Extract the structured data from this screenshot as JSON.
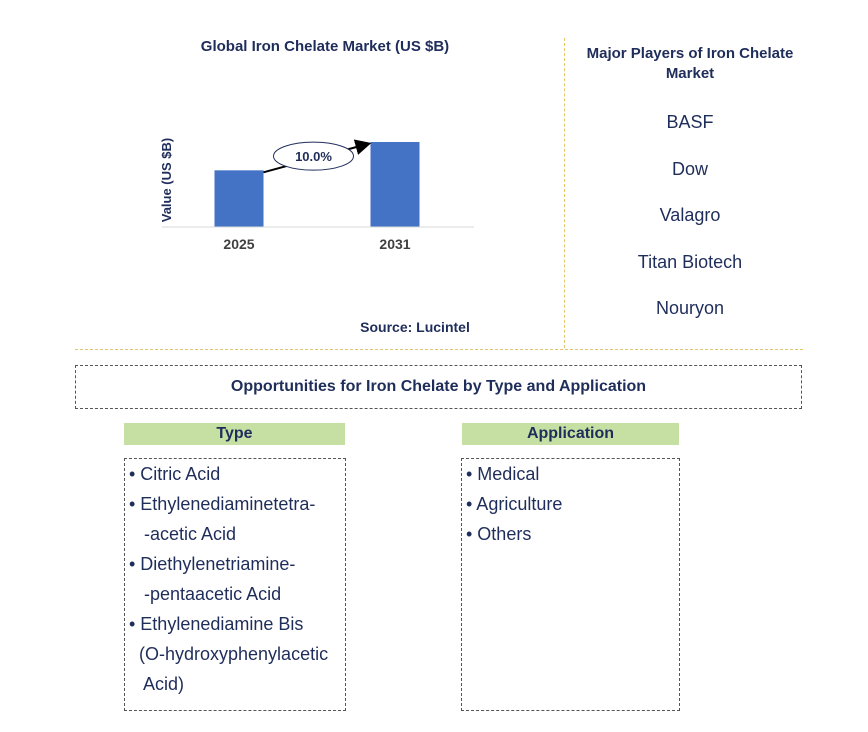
{
  "chart_data": {
    "type": "bar",
    "title": "Global Iron Chelate Market (US $B)",
    "ylabel": "Value (US $B)",
    "categories": [
      "2025",
      "2031"
    ],
    "values": [
      1.0,
      1.5
    ],
    "ylim": [
      0,
      1.5
    ],
    "annotation": "10.0%",
    "bar_color": "#4472c4"
  },
  "source": "Source: Lucintel",
  "players": {
    "title": "Major Players of Iron Chelate Market",
    "items": [
      "BASF",
      "Dow",
      "Valagro",
      "Titan Biotech",
      "Nouryon"
    ]
  },
  "opportunities": {
    "title": "Opportunities for Iron Chelate by Type and Application",
    "type": {
      "heading": "Type",
      "items": [
        "• Citric Acid",
        "• Ethylenediaminetetra-",
        "   -acetic Acid",
        "• Diethylenetriamine-",
        "   -pentaacetic Acid",
        "• Ethylenediamine Bis",
        "  (O-hydroxyphenylacetic",
        "   Acid)"
      ]
    },
    "application": {
      "heading": "Application",
      "items": [
        "• Medical",
        "• Agriculture",
        "• Others"
      ]
    }
  }
}
